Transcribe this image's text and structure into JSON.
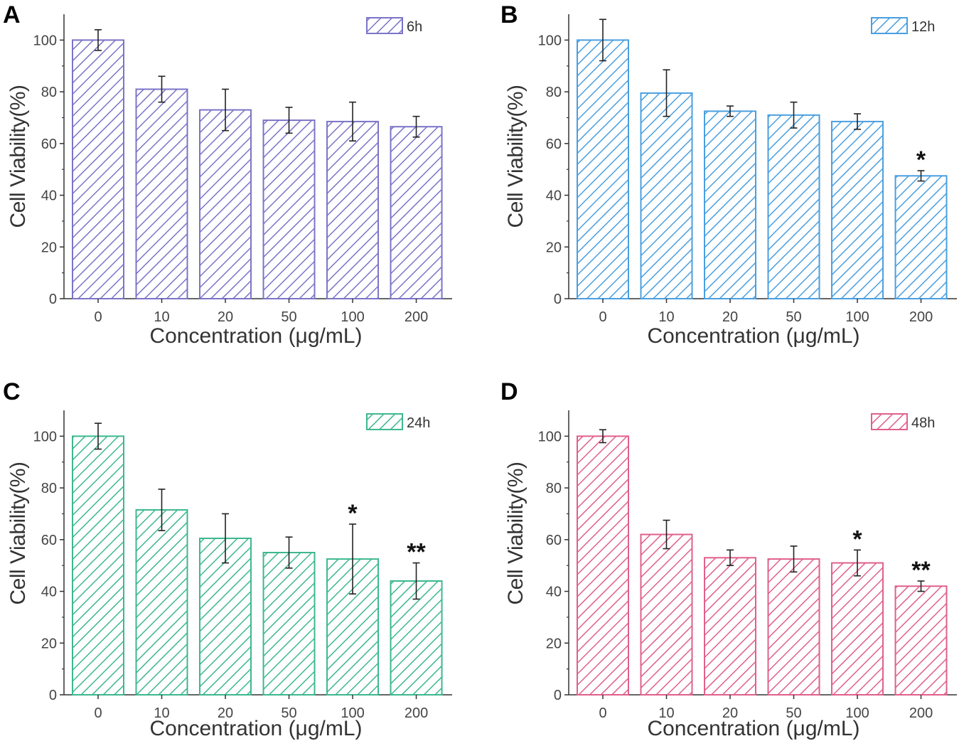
{
  "chart_data": [
    {
      "panel": "A",
      "type": "bar",
      "color": "#7b74c8",
      "legend": "6h",
      "xlabel": "Concentration (μg/mL)",
      "ylabel": "Cell Viability(%)",
      "categories": [
        "0",
        "10",
        "20",
        "50",
        "100",
        "200"
      ],
      "values": [
        100,
        81,
        73,
        69,
        68.5,
        66.5
      ],
      "errors": [
        4,
        5,
        8,
        5,
        7.5,
        4
      ],
      "significance": [
        "",
        "",
        "",
        "",
        "",
        ""
      ],
      "ylim": [
        0,
        110
      ],
      "yticks": [
        "0",
        "20",
        "40",
        "60",
        "80",
        "100"
      ]
    },
    {
      "panel": "B",
      "type": "bar",
      "color": "#4a9fe0",
      "legend": "12h",
      "xlabel": "Concentration (μg/mL)",
      "ylabel": "Cell Viability(%)",
      "categories": [
        "0",
        "10",
        "20",
        "50",
        "100",
        "200"
      ],
      "values": [
        100,
        79.5,
        72.5,
        71,
        68.5,
        47.5
      ],
      "errors": [
        8,
        9,
        2,
        5,
        3,
        2
      ],
      "significance": [
        "",
        "",
        "",
        "",
        "",
        "*"
      ],
      "ylim": [
        0,
        110
      ],
      "yticks": [
        "0",
        "20",
        "40",
        "60",
        "80",
        "100"
      ]
    },
    {
      "panel": "C",
      "type": "bar",
      "color": "#3db88e",
      "legend": "24h",
      "xlabel": "Concentration (μg/mL)",
      "ylabel": "Cell Viability(%)",
      "categories": [
        "0",
        "10",
        "20",
        "50",
        "100",
        "200"
      ],
      "values": [
        100,
        71.5,
        60.5,
        55,
        52.5,
        44
      ],
      "errors": [
        5,
        8,
        9.5,
        6,
        13.5,
        7
      ],
      "significance": [
        "",
        "",
        "",
        "",
        "*",
        "**"
      ],
      "ylim": [
        0,
        110
      ],
      "yticks": [
        "0",
        "20",
        "40",
        "60",
        "80",
        "100"
      ]
    },
    {
      "panel": "D",
      "type": "bar",
      "color": "#e0608a",
      "legend": "48h",
      "xlabel": "Concentration (μg/mL)",
      "ylabel": "Cell Viability(%)",
      "categories": [
        "0",
        "10",
        "20",
        "50",
        "100",
        "200"
      ],
      "values": [
        100,
        62,
        53,
        52.5,
        51,
        42
      ],
      "errors": [
        2.5,
        5.5,
        3,
        5,
        5,
        2
      ],
      "significance": [
        "",
        "",
        "",
        "",
        "*",
        "**"
      ],
      "ylim": [
        0,
        110
      ],
      "yticks": [
        "0",
        "20",
        "40",
        "60",
        "80",
        "100"
      ]
    }
  ]
}
